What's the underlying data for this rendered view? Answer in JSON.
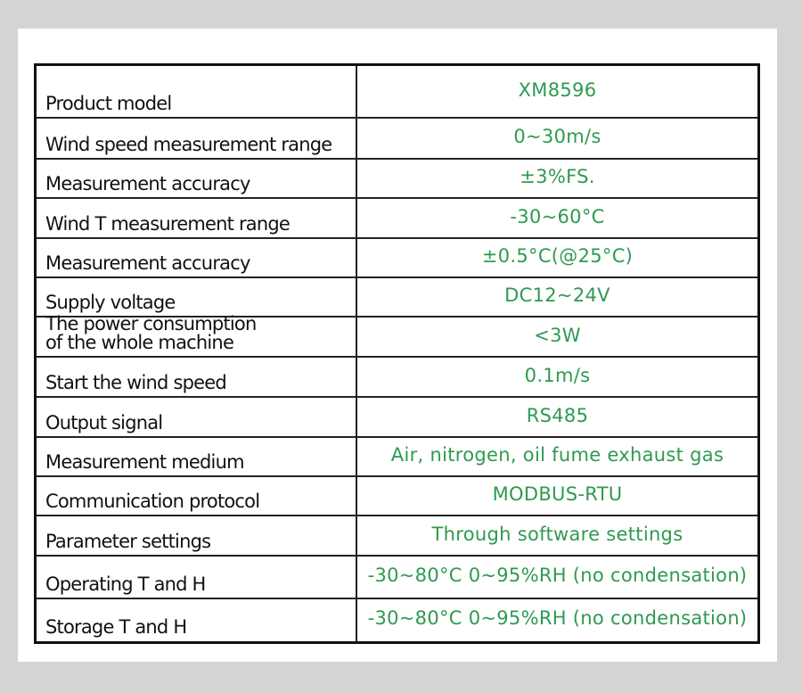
{
  "table": {
    "rows": [
      [
        "Product model",
        "XM8596"
      ],
      [
        "Wind speed measurement range",
        "0~30m/s"
      ],
      [
        "Measurement accuracy",
        "±3%FS."
      ],
      [
        "Wind T measurement range",
        "-30~60°C"
      ],
      [
        "Measurement accuracy",
        "±0.5°C(@25°C)"
      ],
      [
        "Supply voltage",
        "DC12~24V"
      ],
      [
        "The power consumption\nof the whole machine",
        "<3W"
      ],
      [
        "Start the wind speed",
        "0.1m/s"
      ],
      [
        "Output signal",
        "RS485"
      ],
      [
        "Measurement medium",
        "Air, nitrogen, oil fume exhaust gas"
      ],
      [
        "Communication protocol",
        "MODBUS-RTU"
      ],
      [
        "Parameter settings",
        "Through software settings"
      ],
      [
        "Operating T and H",
        "-30~80°C 0~95%RH (no condensation)"
      ],
      [
        "Storage T and H",
        "-30~80°C 0~95%RH (no condensation)"
      ]
    ]
  }
}
